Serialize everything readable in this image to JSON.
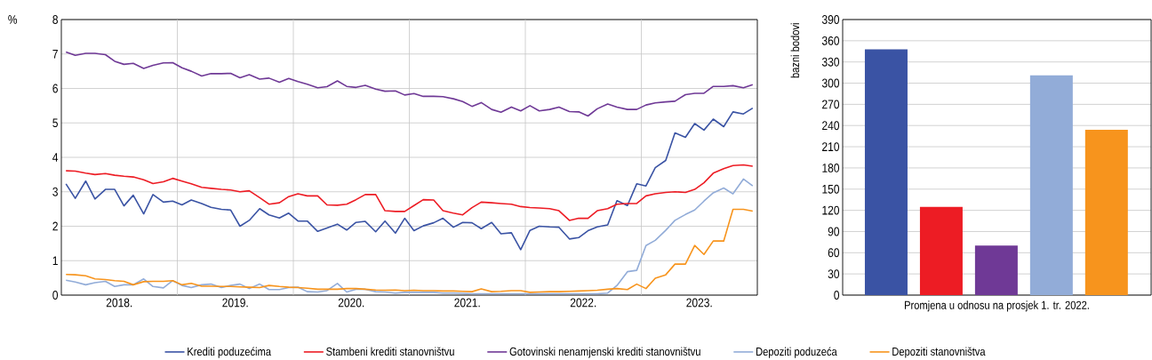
{
  "chart_data": [
    {
      "type": "line",
      "ylabel": "%",
      "grid": true,
      "legend": "bottom",
      "xlim": [
        "2018-01-01",
        "2024-01-01"
      ],
      "ylim": [
        0,
        8
      ],
      "yticks": [
        0,
        1,
        2,
        3,
        4,
        5,
        6,
        7,
        8
      ],
      "xticks": [
        {
          "value": "2018-07-01",
          "label": "2018."
        },
        {
          "value": "2019-01-01",
          "label": null
        },
        {
          "value": "2019-07-01",
          "label": "2019."
        },
        {
          "value": "2020-01-01",
          "label": null
        },
        {
          "value": "2020-07-01",
          "label": "2020."
        },
        {
          "value": "2021-01-01",
          "label": null
        },
        {
          "value": "2021-07-01",
          "label": "2021."
        },
        {
          "value": "2022-01-01",
          "label": null
        },
        {
          "value": "2022-07-01",
          "label": "2022."
        },
        {
          "value": "2023-01-01",
          "label": null
        },
        {
          "value": "2023-07-01",
          "label": "2023."
        }
      ],
      "x": [
        "2018-01-16",
        "2018-02-16",
        "2018-03-16",
        "2018-04-16",
        "2018-05-16",
        "2018-06-16",
        "2018-07-16",
        "2018-08-16",
        "2018-09-16",
        "2018-10-16",
        "2018-11-16",
        "2018-12-16",
        "2019-01-16",
        "2019-02-16",
        "2019-03-16",
        "2019-04-16",
        "2019-05-16",
        "2019-06-16",
        "2019-07-16",
        "2019-08-16",
        "2019-09-16",
        "2019-10-16",
        "2019-11-16",
        "2019-12-16",
        "2020-01-16",
        "2020-02-16",
        "2020-03-16",
        "2020-04-16",
        "2020-05-16",
        "2020-06-16",
        "2020-07-16",
        "2020-08-16",
        "2020-09-16",
        "2020-10-16",
        "2020-11-16",
        "2020-12-16",
        "2021-01-16",
        "2021-02-16",
        "2021-03-16",
        "2021-04-16",
        "2021-05-16",
        "2021-06-16",
        "2021-07-16",
        "2021-08-16",
        "2021-09-16",
        "2021-10-16",
        "2021-11-16",
        "2021-12-16",
        "2022-01-16",
        "2022-02-16",
        "2022-03-16",
        "2022-04-16",
        "2022-05-16",
        "2022-06-16",
        "2022-07-16",
        "2022-08-16",
        "2022-09-16",
        "2022-10-16",
        "2022-11-16",
        "2022-12-16",
        "2023-01-16",
        "2023-02-16",
        "2023-03-16",
        "2023-04-16",
        "2023-05-16",
        "2023-06-16",
        "2023-07-16",
        "2023-08-16",
        "2023-09-16",
        "2023-10-16",
        "2023-11-16",
        "2023-12-16"
      ],
      "series": [
        {
          "name": "Krediti poduzećima",
          "color": "#3a53a4",
          "values": [
            3.23,
            2.81,
            3.31,
            2.79,
            3.07,
            3.07,
            2.59,
            2.9,
            2.36,
            2.92,
            2.7,
            2.73,
            2.62,
            2.76,
            2.66,
            2.55,
            2.49,
            2.47,
            2.0,
            2.17,
            2.51,
            2.33,
            2.24,
            2.38,
            2.15,
            2.15,
            1.85,
            1.95,
            2.06,
            1.89,
            2.11,
            2.14,
            1.84,
            2.15,
            1.8,
            2.23,
            1.87,
            2.01,
            2.1,
            2.23,
            1.97,
            2.11,
            2.1,
            1.93,
            2.11,
            1.78,
            1.81,
            1.32,
            1.88,
            2.0,
            1.98,
            1.97,
            1.63,
            1.67,
            1.87,
            1.98,
            2.04,
            2.74,
            2.6,
            3.23,
            3.17,
            3.7,
            3.91,
            4.71,
            4.58,
            4.98,
            4.79,
            5.11,
            4.89,
            5.32,
            5.26,
            5.43
          ]
        },
        {
          "name": "Stambeni krediti stanovništvu",
          "color": "#ed1c24",
          "values": [
            3.61,
            3.6,
            3.54,
            3.5,
            3.53,
            3.48,
            3.45,
            3.43,
            3.35,
            3.24,
            3.29,
            3.39,
            3.31,
            3.23,
            3.13,
            3.1,
            3.07,
            3.05,
            3.0,
            3.03,
            2.83,
            2.64,
            2.68,
            2.86,
            2.94,
            2.88,
            2.88,
            2.62,
            2.61,
            2.64,
            2.77,
            2.92,
            2.92,
            2.45,
            2.43,
            2.43,
            2.6,
            2.77,
            2.76,
            2.45,
            2.38,
            2.33,
            2.54,
            2.7,
            2.68,
            2.66,
            2.64,
            2.57,
            2.54,
            2.53,
            2.51,
            2.45,
            2.17,
            2.23,
            2.23,
            2.45,
            2.51,
            2.64,
            2.66,
            2.66,
            2.88,
            2.94,
            2.98,
            3.0,
            2.98,
            3.07,
            3.26,
            3.54,
            3.67,
            3.76,
            3.78,
            3.74
          ]
        },
        {
          "name": "Gotovinski nenamjenski krediti stanovništvu",
          "color": "#6f3996",
          "values": [
            7.06,
            6.96,
            7.02,
            7.02,
            6.98,
            6.79,
            6.7,
            6.73,
            6.58,
            6.67,
            6.74,
            6.75,
            6.6,
            6.5,
            6.36,
            6.43,
            6.43,
            6.44,
            6.31,
            6.4,
            6.27,
            6.3,
            6.18,
            6.29,
            6.2,
            6.12,
            6.02,
            6.05,
            6.22,
            6.06,
            6.03,
            6.09,
            5.98,
            5.92,
            5.93,
            5.81,
            5.85,
            5.77,
            5.77,
            5.76,
            5.7,
            5.62,
            5.48,
            5.59,
            5.39,
            5.31,
            5.46,
            5.35,
            5.5,
            5.35,
            5.39,
            5.46,
            5.33,
            5.32,
            5.2,
            5.41,
            5.55,
            5.46,
            5.39,
            5.39,
            5.52,
            5.58,
            5.61,
            5.63,
            5.82,
            5.86,
            5.86,
            6.06,
            6.06,
            6.08,
            6.02,
            6.11
          ]
        },
        {
          "name": "Depoziti poduzeća",
          "color": "#92acd8",
          "values": [
            0.43,
            0.38,
            0.3,
            0.36,
            0.4,
            0.25,
            0.3,
            0.3,
            0.47,
            0.25,
            0.21,
            0.42,
            0.28,
            0.22,
            0.3,
            0.32,
            0.22,
            0.28,
            0.32,
            0.19,
            0.32,
            0.16,
            0.16,
            0.22,
            0.23,
            0.1,
            0.09,
            0.13,
            0.34,
            0.09,
            0.17,
            0.17,
            0.1,
            0.09,
            0.06,
            0.08,
            0.08,
            0.08,
            0.08,
            0.06,
            0.06,
            0.05,
            0.04,
            0.04,
            0.04,
            0.04,
            0.04,
            0.04,
            0.04,
            0.04,
            0.04,
            0.04,
            0.04,
            0.04,
            0.04,
            0.04,
            0.06,
            0.28,
            0.68,
            0.72,
            1.44,
            1.59,
            1.88,
            2.17,
            2.34,
            2.47,
            2.73,
            2.97,
            3.11,
            2.94,
            3.37,
            3.17
          ]
        },
        {
          "name": "Depoziti stanovništva",
          "color": "#f7941d",
          "values": [
            0.6,
            0.59,
            0.56,
            0.47,
            0.45,
            0.42,
            0.4,
            0.3,
            0.39,
            0.4,
            0.4,
            0.42,
            0.3,
            0.34,
            0.26,
            0.26,
            0.25,
            0.25,
            0.24,
            0.23,
            0.22,
            0.28,
            0.25,
            0.23,
            0.22,
            0.2,
            0.17,
            0.17,
            0.17,
            0.19,
            0.19,
            0.17,
            0.15,
            0.14,
            0.15,
            0.13,
            0.14,
            0.13,
            0.13,
            0.12,
            0.12,
            0.11,
            0.1,
            0.18,
            0.1,
            0.11,
            0.13,
            0.13,
            0.08,
            0.09,
            0.1,
            0.1,
            0.11,
            0.12,
            0.13,
            0.14,
            0.17,
            0.19,
            0.16,
            0.32,
            0.19,
            0.49,
            0.59,
            0.9,
            0.9,
            1.44,
            1.18,
            1.57,
            1.57,
            2.49,
            2.49,
            2.44
          ]
        }
      ]
    },
    {
      "type": "bar",
      "xlabel": "Promjena u odnosu na prosjek 1. tr. 2022.",
      "ylabel": "bazni bodovi",
      "grid": "y",
      "ylim": [
        0,
        390
      ],
      "yticks": [
        0,
        30,
        60,
        90,
        120,
        150,
        180,
        210,
        240,
        270,
        300,
        330,
        360,
        390
      ],
      "categories": [
        null,
        null,
        null,
        null,
        null
      ],
      "values": [
        348,
        125,
        70,
        311,
        234
      ],
      "colors": [
        "#3a53a4",
        "#ed1c24",
        "#6f3996",
        "#92acd8",
        "#f7941d"
      ]
    }
  ]
}
